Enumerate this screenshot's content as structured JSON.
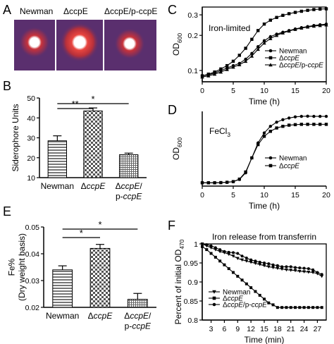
{
  "panels": {
    "A": {
      "letter": "A",
      "photo_labels": [
        "Newman",
        "ΔccpE",
        "ΔccpE/p-ccpE"
      ]
    },
    "B": {
      "letter": "B"
    },
    "C": {
      "letter": "C"
    },
    "D": {
      "letter": "D"
    },
    "E": {
      "letter": "E"
    },
    "F": {
      "letter": "F"
    }
  },
  "colors": {
    "photo_background": "#5a2f6e",
    "halo_red": "#c8323a",
    "bar_fill": "#9a9a9a"
  },
  "chart_data": [
    {
      "id": "B",
      "type": "bar",
      "ylabel": "Siderophore Units",
      "categories": [
        "Newman",
        "ΔccpE",
        "ΔccpE/\np-ccpE"
      ],
      "values": [
        28.5,
        43.5,
        21.5
      ],
      "errors": [
        2.5,
        1.5,
        0.8
      ],
      "ylim": [
        10,
        50
      ],
      "yticks": [
        10,
        20,
        30,
        40,
        50
      ],
      "significance": [
        {
          "from": 0,
          "to": 1,
          "label": "**"
        },
        {
          "from": 0,
          "to": 2,
          "label": "*"
        }
      ],
      "patterns": [
        "hlines",
        "checker",
        "grid"
      ]
    },
    {
      "id": "C",
      "type": "line",
      "title": "Iron-limited",
      "xlabel": "Time (h)",
      "ylabel": "OD600",
      "xlim": [
        0,
        20
      ],
      "ylim": [
        0.08,
        0.35
      ],
      "ylog": true,
      "xticks": [
        0,
        5,
        10,
        15,
        20
      ],
      "yticks": [
        0.1,
        0.2,
        0.3
      ],
      "legend_position": "bottom-right",
      "series": [
        {
          "name": "Newman",
          "marker": "circle",
          "x": [
            0,
            1,
            2,
            3,
            4,
            5,
            6,
            7,
            8,
            9,
            10,
            11,
            12,
            13,
            14,
            15,
            16,
            17,
            18,
            19,
            20
          ],
          "y": [
            0.09,
            0.092,
            0.095,
            0.1,
            0.105,
            0.11,
            0.115,
            0.125,
            0.14,
            0.16,
            0.18,
            0.195,
            0.205,
            0.213,
            0.22,
            0.227,
            0.233,
            0.238,
            0.243,
            0.247,
            0.25
          ]
        },
        {
          "name": "ΔccpE",
          "marker": "square",
          "x": [
            0,
            1,
            2,
            3,
            4,
            5,
            6,
            7,
            8,
            9,
            10,
            11,
            12,
            13,
            14,
            15,
            16,
            17,
            18,
            19,
            20
          ],
          "y": [
            0.09,
            0.093,
            0.097,
            0.103,
            0.11,
            0.12,
            0.135,
            0.155,
            0.185,
            0.22,
            0.25,
            0.27,
            0.285,
            0.297,
            0.307,
            0.315,
            0.322,
            0.328,
            0.333,
            0.336,
            0.338
          ]
        },
        {
          "name": "ΔccpE/p-ccpE",
          "marker": "triangle",
          "x": [
            0,
            1,
            2,
            3,
            4,
            5,
            6,
            7,
            8,
            9,
            10,
            11,
            12,
            13,
            14,
            15,
            16,
            17,
            18,
            19,
            20
          ],
          "y": [
            0.088,
            0.09,
            0.093,
            0.097,
            0.102,
            0.107,
            0.112,
            0.12,
            0.133,
            0.152,
            0.172,
            0.188,
            0.2,
            0.21,
            0.218,
            0.225,
            0.231,
            0.236,
            0.24,
            0.243,
            0.246
          ]
        }
      ]
    },
    {
      "id": "D",
      "type": "line",
      "title": "FeCl3",
      "xlabel": "Time (h)",
      "ylabel": "OD600",
      "xlim": [
        0,
        20
      ],
      "xticks": [
        0,
        5,
        10,
        15,
        20
      ],
      "legend_position": "bottom-right",
      "series": [
        {
          "name": "Newman",
          "marker": "circle",
          "x": [
            0,
            1,
            2,
            3,
            4,
            5,
            6,
            7,
            8,
            9,
            10,
            11,
            12,
            13,
            14,
            15,
            16,
            17,
            18,
            19,
            20
          ],
          "y": [
            0.02,
            0.02,
            0.02,
            0.021,
            0.023,
            0.027,
            0.04,
            0.08,
            0.17,
            0.26,
            0.32,
            0.36,
            0.385,
            0.4,
            0.41,
            0.417,
            0.42,
            0.421,
            0.42,
            0.42,
            0.42
          ]
        },
        {
          "name": "ΔccpE",
          "marker": "square",
          "x": [
            0,
            1,
            2,
            3,
            4,
            5,
            6,
            7,
            8,
            9,
            10,
            11,
            12,
            13,
            14,
            15,
            16,
            17,
            18,
            19,
            20
          ],
          "y": [
            0.02,
            0.02,
            0.02,
            0.021,
            0.023,
            0.027,
            0.042,
            0.085,
            0.17,
            0.25,
            0.3,
            0.33,
            0.35,
            0.36,
            0.367,
            0.37,
            0.372,
            0.372,
            0.372,
            0.372,
            0.372
          ]
        }
      ]
    },
    {
      "id": "E",
      "type": "bar",
      "ylabel": "Fe%\n(Dry weight basis)",
      "categories": [
        "Newman",
        "ΔccpE",
        "ΔccpE/\np-ccpE"
      ],
      "values": [
        0.034,
        0.042,
        0.023
      ],
      "errors": [
        0.0015,
        0.0015,
        0.0022
      ],
      "ylim": [
        0.02,
        0.05
      ],
      "yticks": [
        0.02,
        0.03,
        0.04,
        0.05
      ],
      "significance": [
        {
          "from": 0,
          "to": 1,
          "label": "*"
        },
        {
          "from": 0,
          "to": 2,
          "label": "*"
        }
      ],
      "patterns": [
        "hlines",
        "checker",
        "grid"
      ]
    },
    {
      "id": "F",
      "type": "line",
      "title": "Iron release from transferrin",
      "xlabel": "Time (min)",
      "ylabel": "Percent of initial OD470",
      "xlim": [
        1,
        29
      ],
      "ylim": [
        0.8,
        1.0
      ],
      "xticks": [
        3,
        6,
        9,
        12,
        15,
        18,
        21,
        24,
        27
      ],
      "yticks": [
        0.8,
        0.85,
        0.9,
        0.95,
        1.0
      ],
      "legend_position": "bottom-left",
      "series": [
        {
          "name": "Newman",
          "marker": "triangle-down",
          "x": [
            1,
            2,
            3,
            4,
            5,
            6,
            7,
            8,
            9,
            10,
            11,
            12,
            13,
            14,
            15,
            16,
            17,
            18,
            19,
            20,
            21,
            22,
            23,
            24,
            25,
            26,
            27,
            28
          ],
          "y": [
            1.0,
            0.995,
            0.99,
            0.985,
            0.98,
            0.977,
            0.973,
            0.968,
            0.962,
            0.958,
            0.955,
            0.952,
            0.949,
            0.946,
            0.943,
            0.94,
            0.938,
            0.936,
            0.934,
            0.932,
            0.931,
            0.93,
            0.928,
            0.927,
            0.926,
            0.925,
            0.922,
            0.915
          ]
        },
        {
          "name": "ΔccpE",
          "marker": "square",
          "x": [
            1,
            2,
            3,
            4,
            5,
            6,
            7,
            8,
            9,
            10,
            11,
            12,
            13,
            14,
            15,
            16,
            17,
            18,
            19,
            20,
            21,
            22,
            23,
            24,
            25,
            26,
            27,
            28
          ],
          "y": [
            0.993,
            0.985,
            0.975,
            0.965,
            0.955,
            0.945,
            0.935,
            0.925,
            0.915,
            0.905,
            0.895,
            0.885,
            0.875,
            0.865,
            0.855,
            0.845,
            0.84,
            0.833,
            0.833,
            0.833,
            0.833,
            0.833,
            0.833,
            0.833,
            0.833,
            0.833,
            0.833,
            0.833
          ]
        },
        {
          "name": "ΔccpE/p-ccpE",
          "marker": "circle",
          "x": [
            1,
            2,
            3,
            4,
            5,
            6,
            7,
            8,
            9,
            10,
            11,
            12,
            13,
            14,
            15,
            16,
            17,
            18,
            19,
            20,
            21,
            22,
            23,
            24,
            25,
            26,
            27,
            28
          ],
          "y": [
            1.0,
            0.998,
            0.995,
            0.99,
            0.985,
            0.98,
            0.978,
            0.977,
            0.975,
            0.968,
            0.963,
            0.958,
            0.955,
            0.952,
            0.95,
            0.948,
            0.945,
            0.943,
            0.94,
            0.94,
            0.94,
            0.938,
            0.937,
            0.936,
            0.935,
            0.932,
            0.925,
            0.92
          ]
        }
      ]
    }
  ]
}
